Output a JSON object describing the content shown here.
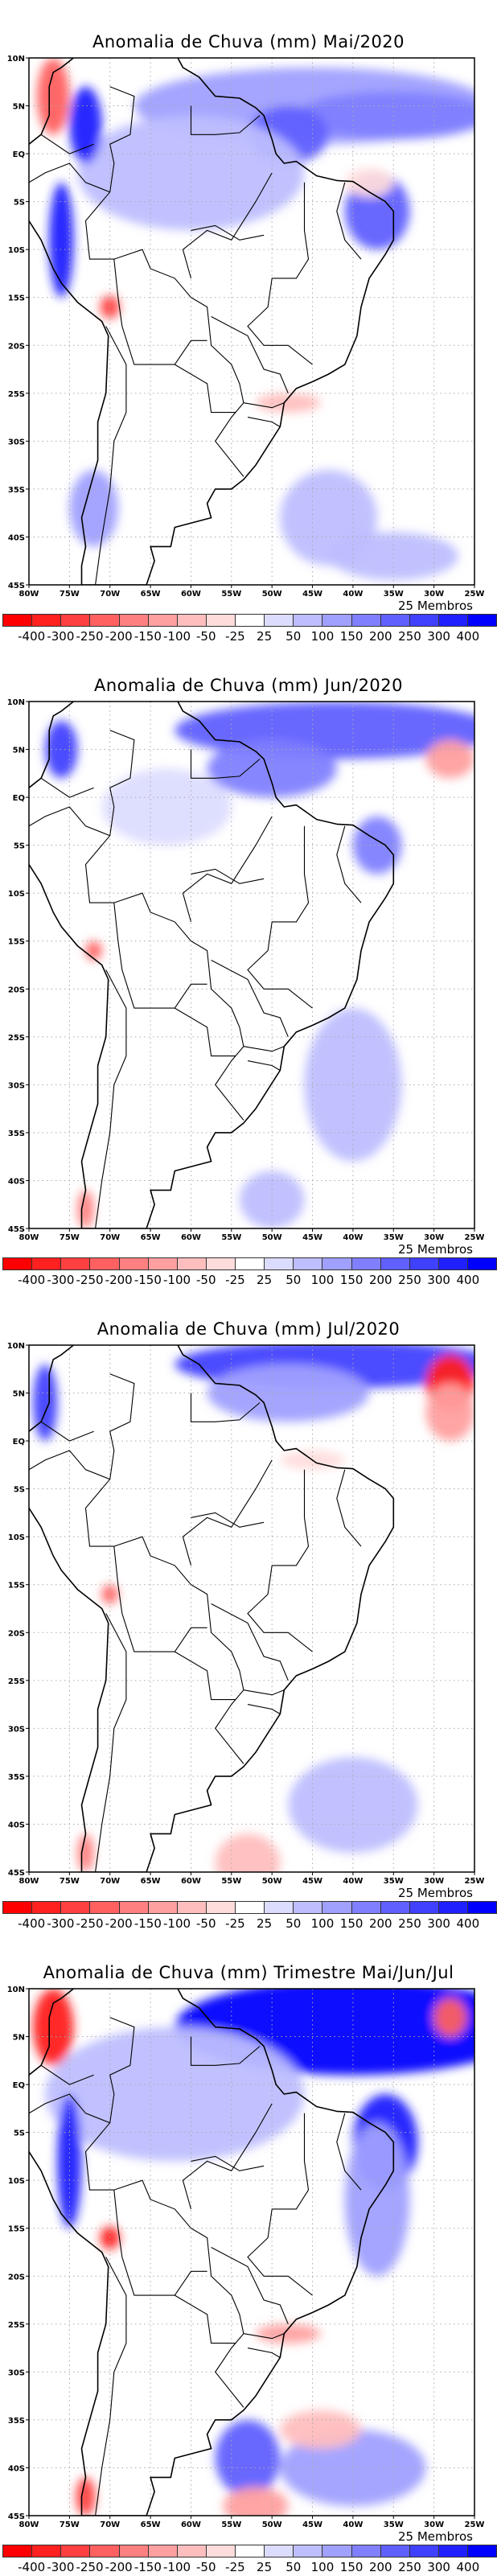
{
  "panels": [
    {
      "title": "Anomalia de Chuva (mm) Mai/2020",
      "members": "25 Membros",
      "key": "mai"
    },
    {
      "title": "Anomalia de Chuva (mm) Jun/2020",
      "members": "25 Membros",
      "key": "jun"
    },
    {
      "title": "Anomalia de Chuva (mm) Jul/2020",
      "members": "25 Membros",
      "key": "jul"
    },
    {
      "title": "Anomalia de Chuva (mm) Trimestre Mai/Jun/Jul",
      "members": "25 Membros",
      "key": "tri"
    }
  ],
  "chart_data": {
    "type": "heatmap",
    "xlabel": "",
    "ylabel": "",
    "xlim": [
      -80,
      -25
    ],
    "ylim": [
      -45,
      10
    ],
    "grid": true,
    "x_ticks": [
      "80W",
      "75W",
      "70W",
      "65W",
      "60W",
      "55W",
      "50W",
      "45W",
      "40W",
      "35W",
      "30W",
      "25W"
    ],
    "y_ticks": [
      "10N",
      "5N",
      "EQ",
      "5S",
      "10S",
      "15S",
      "20S",
      "25S",
      "30S",
      "35S",
      "40S",
      "45S"
    ],
    "colorbar": {
      "labels": [
        "-400",
        "-300",
        "-250",
        "-200",
        "-150",
        "-100",
        "-50",
        "-25",
        "25",
        "50",
        "100",
        "150",
        "200",
        "250",
        "300",
        "400"
      ],
      "colors": [
        "#ff0000",
        "#ff2020",
        "#ff4040",
        "#ff6060",
        "#ff8080",
        "#ffa0a0",
        "#ffbebe",
        "#ffdcdc",
        "#ffffff",
        "#dcdcff",
        "#bebeff",
        "#a0a0ff",
        "#8080ff",
        "#6060ff",
        "#4040ff",
        "#2020ff",
        "#0000ff"
      ]
    },
    "fields": {
      "mai": [
        {
          "lon": -45,
          "lat": 5,
          "rx": 22,
          "ry": 4,
          "level": 11
        },
        {
          "lon": -35,
          "lat": 4,
          "rx": 12,
          "ry": 2.5,
          "level": 12
        },
        {
          "lon": -37,
          "lat": -6,
          "rx": 4,
          "ry": 4,
          "level": 13
        },
        {
          "lon": -48,
          "lat": 2,
          "rx": 5,
          "ry": 3,
          "level": 13
        },
        {
          "lon": -60,
          "lat": -2,
          "rx": 14,
          "ry": 6,
          "level": 10
        },
        {
          "lon": -77,
          "lat": 6,
          "rx": 2,
          "ry": 4,
          "level": 3
        },
        {
          "lon": -73,
          "lat": 3,
          "rx": 2,
          "ry": 4,
          "level": 15
        },
        {
          "lon": -76,
          "lat": -9,
          "rx": 1.5,
          "ry": 6,
          "level": 15
        },
        {
          "lon": -70,
          "lat": -16,
          "rx": 1.2,
          "ry": 1.2,
          "level": 2
        },
        {
          "lon": -43,
          "lat": -38,
          "rx": 6,
          "ry": 5,
          "level": 10
        },
        {
          "lon": -35,
          "lat": -42,
          "rx": 8,
          "ry": 2.5,
          "level": 10
        },
        {
          "lon": -72,
          "lat": -37,
          "rx": 3,
          "ry": 4,
          "level": 11
        },
        {
          "lon": -48,
          "lat": -26,
          "rx": 4,
          "ry": 1,
          "level": 6
        },
        {
          "lon": -38,
          "lat": -3,
          "rx": 3,
          "ry": 1.5,
          "level": 7
        }
      ],
      "jun": [
        {
          "lon": -42,
          "lat": 7,
          "rx": 20,
          "ry": 3,
          "level": 13
        },
        {
          "lon": -50,
          "lat": 3,
          "rx": 8,
          "ry": 3,
          "level": 12
        },
        {
          "lon": -37,
          "lat": -5,
          "rx": 3,
          "ry": 3,
          "level": 12
        },
        {
          "lon": -28,
          "lat": 4,
          "rx": 3,
          "ry": 2,
          "level": 5
        },
        {
          "lon": -76,
          "lat": 5,
          "rx": 2,
          "ry": 3,
          "level": 14
        },
        {
          "lon": -40,
          "lat": -30,
          "rx": 6,
          "ry": 8,
          "level": 10
        },
        {
          "lon": -50,
          "lat": -42,
          "rx": 4,
          "ry": 3,
          "level": 10
        },
        {
          "lon": -72,
          "lat": -16,
          "rx": 1,
          "ry": 1,
          "level": 3
        },
        {
          "lon": -73,
          "lat": -43,
          "rx": 1,
          "ry": 2,
          "level": 4
        },
        {
          "lon": -63,
          "lat": -1,
          "rx": 8,
          "ry": 4,
          "level": 9
        }
      ],
      "jul": [
        {
          "lon": -42,
          "lat": 8,
          "rx": 20,
          "ry": 2.5,
          "level": 14
        },
        {
          "lon": -48,
          "lat": 5,
          "rx": 10,
          "ry": 3,
          "level": 11
        },
        {
          "lon": -28,
          "lat": 6,
          "rx": 3,
          "ry": 3,
          "level": 1
        },
        {
          "lon": -28,
          "lat": 3,
          "rx": 3,
          "ry": 3,
          "level": 5
        },
        {
          "lon": -78,
          "lat": 4,
          "rx": 1.5,
          "ry": 4,
          "level": 14
        },
        {
          "lon": -70,
          "lat": -16,
          "rx": 1,
          "ry": 1,
          "level": 3
        },
        {
          "lon": -40,
          "lat": -38,
          "rx": 8,
          "ry": 5,
          "level": 10
        },
        {
          "lon": -53,
          "lat": -44,
          "rx": 4,
          "ry": 3,
          "level": 6
        },
        {
          "lon": -73,
          "lat": -43,
          "rx": 1,
          "ry": 2,
          "level": 4
        },
        {
          "lon": -45,
          "lat": -2,
          "rx": 4,
          "ry": 1,
          "level": 7
        }
      ],
      "tri": [
        {
          "lon": -40,
          "lat": 6,
          "rx": 22,
          "ry": 5,
          "level": 16
        },
        {
          "lon": -36,
          "lat": -6,
          "rx": 4,
          "ry": 5,
          "level": 15
        },
        {
          "lon": -62,
          "lat": -1,
          "rx": 16,
          "ry": 7,
          "level": 10
        },
        {
          "lon": -77,
          "lat": 6,
          "rx": 2.5,
          "ry": 4,
          "level": 1
        },
        {
          "lon": -75,
          "lat": -8,
          "rx": 1.5,
          "ry": 7,
          "level": 15
        },
        {
          "lon": -70,
          "lat": -16,
          "rx": 1.2,
          "ry": 1.2,
          "level": 1
        },
        {
          "lon": -28,
          "lat": 7,
          "rx": 2,
          "ry": 2,
          "level": 3
        },
        {
          "lon": -53,
          "lat": -39,
          "rx": 4,
          "ry": 4,
          "level": 13
        },
        {
          "lon": -40,
          "lat": -40,
          "rx": 9,
          "ry": 4,
          "level": 11
        },
        {
          "lon": -44,
          "lat": -36,
          "rx": 5,
          "ry": 2,
          "level": 6
        },
        {
          "lon": -52,
          "lat": -44,
          "rx": 4,
          "ry": 2,
          "level": 5
        },
        {
          "lon": -73,
          "lat": -43,
          "rx": 1.2,
          "ry": 2,
          "level": 2
        },
        {
          "lon": -48,
          "lat": -26,
          "rx": 4,
          "ry": 1,
          "level": 5
        },
        {
          "lon": -37,
          "lat": -12,
          "rx": 4,
          "ry": 8,
          "level": 11
        }
      ]
    }
  }
}
